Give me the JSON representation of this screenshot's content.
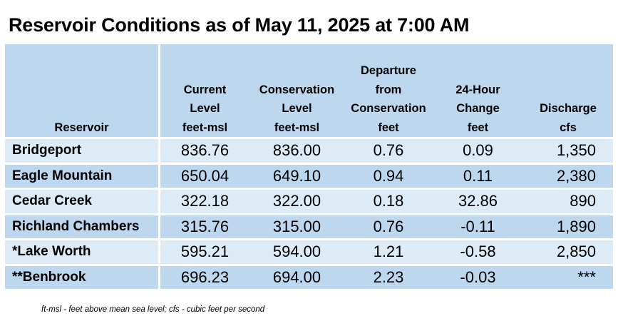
{
  "title": "Reservoir Conditions as of May 11, 2025 at 7:00 AM",
  "headers": [
    {
      "lines": [
        "Reservoir"
      ]
    },
    {
      "lines": [
        "Current",
        "Level",
        "feet-msl"
      ]
    },
    {
      "lines": [
        "Conservation",
        "Level",
        "feet-msl"
      ]
    },
    {
      "lines": [
        "Departure",
        "from",
        "Conservation",
        "feet"
      ]
    },
    {
      "lines": [
        "24-Hour",
        "Change",
        "feet"
      ]
    },
    {
      "lines": [
        "Discharge",
        "cfs"
      ]
    }
  ],
  "rows": [
    {
      "name": "Bridgeport",
      "current": "836.76",
      "conservation": "836.00",
      "departure": "0.76",
      "change": "0.09",
      "discharge": "1,350"
    },
    {
      "name": "Eagle Mountain",
      "current": "650.04",
      "conservation": "649.10",
      "departure": "0.94",
      "change": "0.11",
      "discharge": "2,380"
    },
    {
      "name": "Cedar Creek",
      "current": "322.18",
      "conservation": "322.00",
      "departure": "0.18",
      "change": "32.86",
      "discharge": "890"
    },
    {
      "name": "Richland Chambers",
      "current": "315.76",
      "conservation": "315.00",
      "departure": "0.76",
      "change": "-0.11",
      "discharge": "1,890"
    },
    {
      "name": "*Lake Worth",
      "current": "595.21",
      "conservation": "594.00",
      "departure": "1.21",
      "change": "-0.58",
      "discharge": "2,850"
    },
    {
      "name": "**Benbrook",
      "current": "696.23",
      "conservation": "694.00",
      "departure": "2.23",
      "change": "-0.03",
      "discharge": "***"
    }
  ],
  "footnote": "ft-msl - feet above mean sea level; cfs - cubic feet per second",
  "colors": {
    "header_bg": "#bdd7ee",
    "row_light": "#ddebf7",
    "row_dark": "#bdd7ee"
  }
}
